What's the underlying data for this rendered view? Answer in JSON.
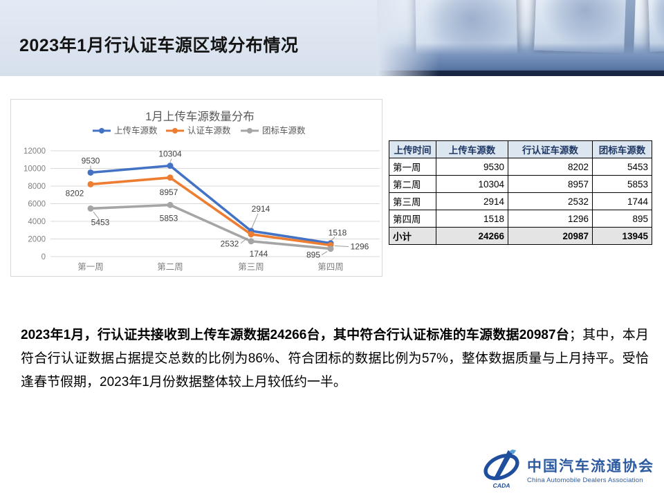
{
  "slide": {
    "title": "2023年1月行认证车源区域分布情况"
  },
  "chart_data": {
    "type": "line",
    "title": "1月上传车源数量分布",
    "categories": [
      "第一周",
      "第二周",
      "第三周",
      "第四周"
    ],
    "series": [
      {
        "name": "上传车源数",
        "color": "#4472C4",
        "values": [
          9530,
          10304,
          2914,
          1518
        ]
      },
      {
        "name": "认证车源数",
        "color": "#ED7D31",
        "values": [
          8202,
          8957,
          2532,
          1296
        ]
      },
      {
        "name": "团标车源数",
        "color": "#A5A5A5",
        "values": [
          5453,
          5853,
          1744,
          895
        ]
      }
    ],
    "ylim": [
      0,
      12000
    ],
    "ytick_step": 2000,
    "grid": true,
    "legend_position": "top"
  },
  "table": {
    "headers": [
      "上传时间",
      "上传车源数",
      "行认证车源数",
      "团标车源数"
    ],
    "rows": [
      {
        "label": "第一周",
        "upload": "9530",
        "certified": "8202",
        "group": "5453"
      },
      {
        "label": "第二周",
        "upload": "10304",
        "certified": "8957",
        "group": "5853"
      },
      {
        "label": "第三周",
        "upload": "2914",
        "certified": "2532",
        "group": "1744"
      },
      {
        "label": "第四周",
        "upload": "1518",
        "certified": "1296",
        "group": "895"
      }
    ],
    "total": {
      "label": "小计",
      "upload": "24266",
      "certified": "20987",
      "group": "13945"
    }
  },
  "body": {
    "bold": "2023年1月，行认证共接收到上传车源数据24266台，其中符合行认证标准的车源数据20987台",
    "rest": "；其中，本月符合行认证数据占据提交总数的比例为86%、符合团标的数据比例为57%，整体数据质量与上月持平。受恰逢春节假期，2023年1月份数据整体较上月较低约一半。"
  },
  "footer": {
    "org_cn": "中国汽车流通协会",
    "org_en": "China Automobile Dealers Association",
    "logo_text": "CADA"
  },
  "colors": {
    "accent_blue": "#4472C4",
    "accent_orange": "#ED7D31",
    "accent_gray": "#A5A5A5",
    "table_header_bg": "#dce6f1",
    "logo_blue": "#2c5aa0"
  }
}
